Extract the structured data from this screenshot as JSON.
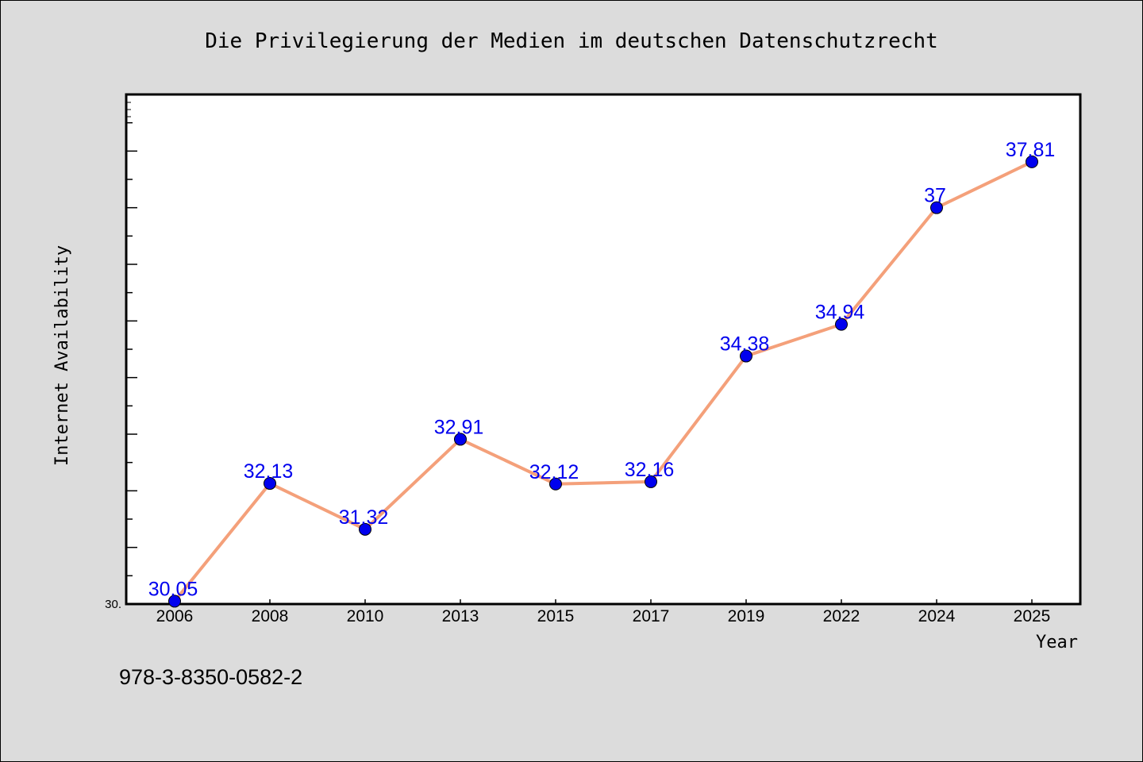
{
  "chart_data": {
    "type": "line",
    "title": "Die Privilegierung der Medien im deutschen Datenschutzrecht",
    "xlabel": "Year",
    "ylabel": "Internet Availability",
    "categories": [
      "2006",
      "2008",
      "2010",
      "2013",
      "2015",
      "2017",
      "2019",
      "2022",
      "2024",
      "2025"
    ],
    "values": [
      30.05,
      32.13,
      31.32,
      32.91,
      32.12,
      32.16,
      34.38,
      34.94,
      37,
      37.81
    ],
    "value_labels": [
      "30.05",
      "32.13",
      "31.32",
      "32.91",
      "32.12",
      "32.16",
      "34.38",
      "34.94",
      "37",
      "37.81"
    ],
    "ylim": [
      30,
      39
    ],
    "y_tick_labels": [
      "30."
    ],
    "grid": false,
    "legend": "none",
    "line_color": "#f4a07a",
    "marker_color": "#0000ee",
    "label_color": "#0000ee"
  },
  "footer": {
    "isbn": "978-3-8350-0582-2"
  }
}
